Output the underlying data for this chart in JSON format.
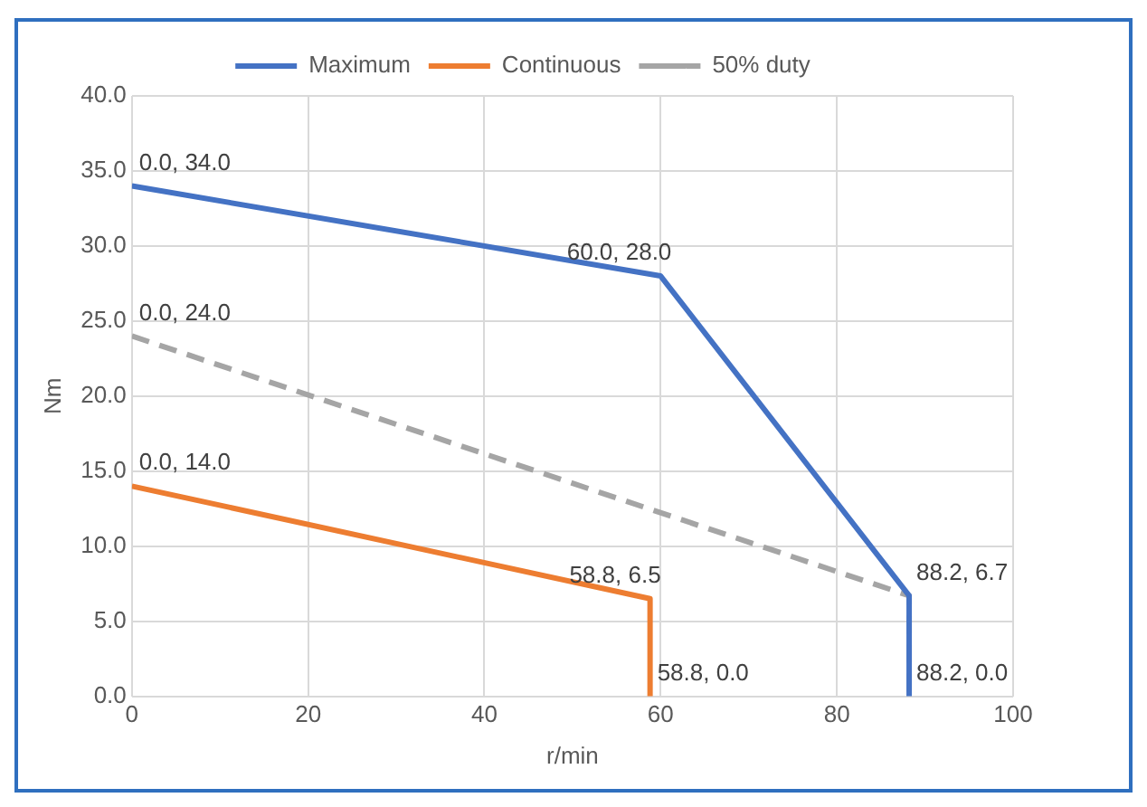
{
  "chart_data": {
    "type": "line",
    "xlabel": "r/min",
    "ylabel": "Nm",
    "xlim": [
      0,
      100
    ],
    "xticks": [
      0,
      20,
      40,
      60,
      80,
      100
    ],
    "ylim": [
      0,
      40
    ],
    "yticks": [
      {
        "value": 0,
        "label": "0.0"
      },
      {
        "value": 5,
        "label": "5.0"
      },
      {
        "value": 10,
        "label": "10.0"
      },
      {
        "value": 15,
        "label": "15.0"
      },
      {
        "value": 20,
        "label": "20.0"
      },
      {
        "value": 25,
        "label": "25.0"
      },
      {
        "value": 30,
        "label": "30.0"
      },
      {
        "value": 35,
        "label": "35.0"
      },
      {
        "value": 40,
        "label": "40.0"
      }
    ],
    "grid": true,
    "legend": "top",
    "marker": "none",
    "series": [
      {
        "name": "Maximum",
        "color": "#4472c4",
        "line_style": "solid",
        "x": [
          0,
          60,
          88.2,
          88.2
        ],
        "values": [
          34,
          28,
          6.7,
          0
        ],
        "value_labels": [
          "0.0, 34.0",
          "60.0, 28.0",
          "88.2, 6.7",
          "88.2, 0.0"
        ]
      },
      {
        "name": "Continuous",
        "color": "#ed7d31",
        "line_style": "solid",
        "x": [
          0,
          58.8,
          58.8
        ],
        "values": [
          14,
          6.5,
          0
        ],
        "value_labels": [
          "0.0, 14.0",
          "58.8, 6.5",
          "58.8, 0.0"
        ]
      },
      {
        "name": "50% duty",
        "color": "#a5a5a5",
        "line_style": "dashed",
        "x": [
          0,
          88.2,
          88.2
        ],
        "values": [
          24,
          6.7,
          0
        ],
        "value_labels": [
          "0.0, 24.0",
          null,
          null
        ]
      }
    ]
  }
}
